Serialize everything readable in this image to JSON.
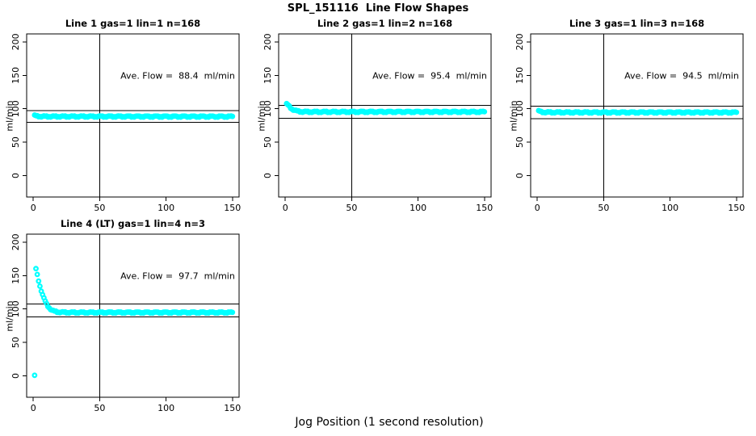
{
  "figure": {
    "title": "SPL_151116  Line Flow Shapes",
    "xlabel": "Jog Position (1 second resolution)",
    "background": "#ffffff",
    "frame_color": "#000000",
    "point_color": "#00ffff"
  },
  "chart_data": [
    {
      "type": "scatter",
      "title": "Line 1 gas=1 lin=1 n=168",
      "annotation": "Ave. Flow =  88.4  ml/min",
      "ave_flow_ml_min": 88.4,
      "n": 168,
      "ylabel": "ml/min",
      "xlim": [
        -5,
        155
      ],
      "ylim": [
        -32,
        212
      ],
      "xticks": [
        0,
        50,
        100,
        150
      ],
      "yticks": [
        0,
        50,
        100,
        150,
        200
      ],
      "vline_x": 50,
      "hlines": [
        97.2,
        79.6
      ],
      "x_resolution": 1,
      "anchors": [
        [
          1,
          89.8
        ],
        [
          3,
          88.9
        ],
        [
          8,
          88.5
        ],
        [
          150,
          88.4
        ]
      ]
    },
    {
      "type": "scatter",
      "title": "Line 2 gas=1 lin=2 n=168",
      "annotation": "Ave. Flow =  95.4  ml/min",
      "ave_flow_ml_min": 95.4,
      "n": 168,
      "ylabel": "ml/min",
      "xlim": [
        -5,
        155
      ],
      "ylim": [
        -32,
        212
      ],
      "xticks": [
        0,
        50,
        100,
        150
      ],
      "yticks": [
        0,
        50,
        100,
        150,
        200
      ],
      "vline_x": 50,
      "hlines": [
        104.9,
        85.9
      ],
      "x_resolution": 1,
      "anchors": [
        [
          1,
          107
        ],
        [
          2,
          105.5
        ],
        [
          3,
          103.5
        ],
        [
          4,
          101.5
        ],
        [
          5,
          100
        ],
        [
          6,
          98.7
        ],
        [
          8,
          97
        ],
        [
          10,
          96.2
        ],
        [
          13,
          95.6
        ],
        [
          20,
          95.4
        ],
        [
          150,
          95.4
        ]
      ]
    },
    {
      "type": "scatter",
      "title": "Line 3 gas=1 lin=3 n=168",
      "annotation": "Ave. Flow =  94.5  ml/min",
      "ave_flow_ml_min": 94.5,
      "n": 168,
      "ylabel": "ml/min",
      "xlim": [
        -5,
        155
      ],
      "ylim": [
        -32,
        212
      ],
      "xticks": [
        0,
        50,
        100,
        150
      ],
      "yticks": [
        0,
        50,
        100,
        150,
        200
      ],
      "vline_x": 50,
      "hlines": [
        104.0,
        85.1
      ],
      "x_resolution": 1,
      "anchors": [
        [
          1,
          96.5
        ],
        [
          3,
          95.3
        ],
        [
          6,
          94.8
        ],
        [
          10,
          94.6
        ],
        [
          150,
          94.5
        ]
      ]
    },
    {
      "type": "scatter",
      "title": "Line 4 (LT) gas=1 lin=4 n=3",
      "annotation": "Ave. Flow =  97.7  ml/min",
      "ave_flow_ml_min": 97.7,
      "n": 3,
      "ylabel": "ml/min",
      "xlim": [
        -5,
        155
      ],
      "ylim": [
        -32,
        212
      ],
      "xticks": [
        0,
        50,
        100,
        150
      ],
      "yticks": [
        0,
        50,
        100,
        150,
        200
      ],
      "vline_x": 50,
      "hlines": [
        107.5,
        87.9
      ],
      "x_resolution": 1,
      "anchors": [
        [
          1,
          0
        ],
        [
          2,
          160
        ],
        [
          3,
          151
        ],
        [
          4,
          142.5
        ],
        [
          5,
          134.5
        ],
        [
          6,
          127.5
        ],
        [
          7,
          121.5
        ],
        [
          8,
          116
        ],
        [
          9,
          111.5
        ],
        [
          10,
          107.5
        ],
        [
          11,
          104.5
        ],
        [
          12,
          102
        ],
        [
          13,
          100
        ],
        [
          14,
          98.3
        ],
        [
          15,
          97.2
        ],
        [
          16,
          96.5
        ],
        [
          18,
          95.7
        ],
        [
          20,
          95.2
        ],
        [
          25,
          94.9
        ],
        [
          30,
          94.8
        ],
        [
          150,
          94.8
        ]
      ]
    }
  ]
}
